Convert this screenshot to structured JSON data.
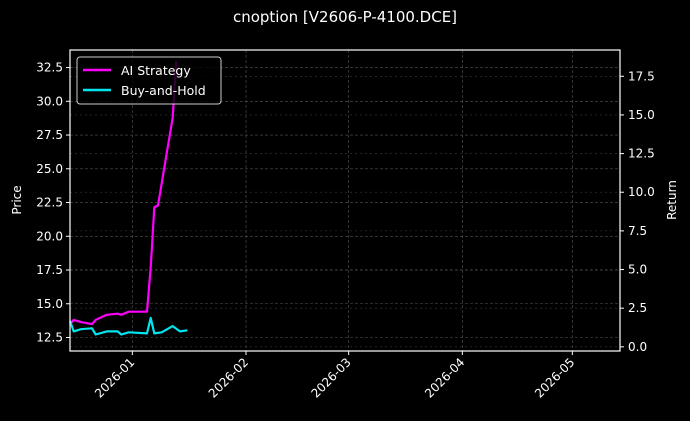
{
  "chart_data": {
    "type": "line",
    "title": "cnoption [V2606-P-4100.DCE]",
    "xlabel": "",
    "ylabel_left": "Price",
    "ylabel_right": "Return",
    "x_ticks": [
      "2026-01",
      "2026-02",
      "2026-03",
      "2026-04",
      "2026-05"
    ],
    "y_left_ticks": [
      "12.5",
      "15.0",
      "17.5",
      "20.0",
      "22.5",
      "25.0",
      "27.5",
      "30.0",
      "32.5"
    ],
    "y_right_ticks": [
      "0.0",
      "2.5",
      "5.0",
      "7.5",
      "10.0",
      "12.5",
      "15.0",
      "17.5"
    ],
    "y_left_range": [
      11.5,
      33.8
    ],
    "y_right_range": [
      -0.27,
      19.2
    ],
    "x_range": [
      "2025-12-15",
      "2026-05-14"
    ],
    "grid": true,
    "legend_position": "upper left",
    "series": [
      {
        "name": "AI Strategy",
        "color": "#ff00ff",
        "axis": "right",
        "x": [
          "2025-12-15",
          "2025-12-16",
          "2025-12-18",
          "2025-12-21",
          "2025-12-22",
          "2025-12-25",
          "2025-12-28",
          "2025-12-29",
          "2025-12-31",
          "2026-01-02",
          "2026-01-05",
          "2026-01-06",
          "2026-01-07",
          "2026-01-08",
          "2026-01-12",
          "2026-01-13"
        ],
        "values": [
          1.47,
          1.74,
          1.6,
          1.47,
          1.74,
          2.07,
          2.14,
          2.07,
          2.27,
          2.27,
          2.27,
          5.14,
          9.02,
          9.15,
          14.83,
          18.5
        ]
      },
      {
        "name": "Buy-and-Hold",
        "color": "#00e5ee",
        "axis": "right",
        "x": [
          "2025-12-15",
          "2025-12-16",
          "2025-12-18",
          "2025-12-21",
          "2025-12-22",
          "2025-12-25",
          "2025-12-28",
          "2025-12-29",
          "2025-12-31",
          "2026-01-05",
          "2026-01-06",
          "2026-01-07",
          "2026-01-09",
          "2026-01-12",
          "2026-01-14",
          "2026-01-16"
        ],
        "values": [
          1.67,
          1.0,
          1.14,
          1.2,
          0.8,
          1.0,
          1.0,
          0.8,
          0.94,
          0.87,
          1.87,
          0.87,
          0.94,
          1.34,
          1.0,
          1.07
        ]
      }
    ]
  },
  "colors": {
    "background": "#000000",
    "grid": "#555555",
    "ai_strategy": "#ff00ff",
    "buy_and_hold": "#00e5ee"
  }
}
